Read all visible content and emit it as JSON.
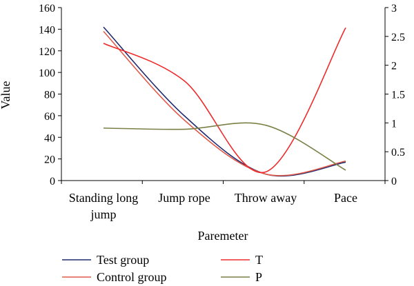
{
  "chart_data": {
    "type": "line",
    "xlabel": "Paremeter",
    "ylabel": "Value",
    "categories": [
      [
        "Standing long",
        "jump"
      ],
      [
        "Jump rope"
      ],
      [
        "Throw away"
      ],
      [
        "Pace"
      ]
    ],
    "left_axis": {
      "min": 0,
      "max": 160,
      "ticks": [
        "0",
        "20",
        "40",
        "60",
        "80",
        "100",
        "120",
        "140",
        "160"
      ]
    },
    "right_axis": {
      "min": 0,
      "max": 3,
      "ticks": [
        "0",
        "0.5",
        "1",
        "1.5",
        "2",
        "2.5",
        "3"
      ]
    },
    "grid": false,
    "legend_position": "bottom",
    "series": [
      {
        "name": "Test group",
        "axis": "left",
        "color": "#1f2a6e",
        "values": [
          142,
          60,
          6,
          17
        ]
      },
      {
        "name": "Control group",
        "axis": "left",
        "color": "#e05a4a",
        "values": [
          138,
          56,
          6,
          18
        ]
      },
      {
        "name": "T",
        "axis": "right",
        "color": "#ee2a2a",
        "values": [
          2.38,
          1.73,
          0.15,
          2.65
        ]
      },
      {
        "name": "P",
        "axis": "right",
        "color": "#7a7f45",
        "values": [
          0.91,
          0.89,
          0.96,
          0.18
        ]
      }
    ]
  }
}
